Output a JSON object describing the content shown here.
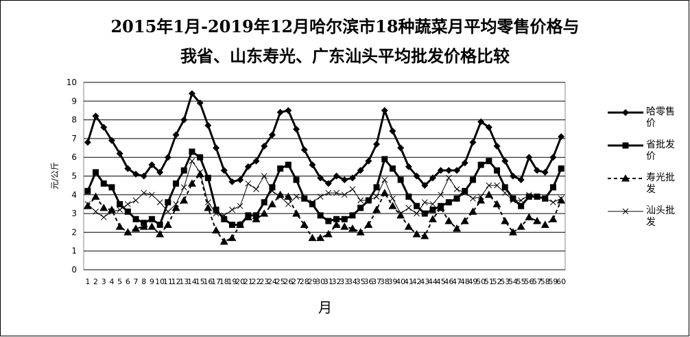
{
  "chart_data": {
    "type": "line",
    "title": [
      "2015年1月-2019年12月哈尔滨市18种蔬菜月平均零售价格与",
      "我省、山东寿光、广东汕头平均批发价格比较"
    ],
    "x_label": "月",
    "y_label": "元/公斤",
    "categories": [
      "1",
      "2",
      "3",
      "4",
      "5",
      "6",
      "7",
      "8",
      "9",
      "10",
      "11",
      "12",
      "13",
      "14",
      "15",
      "16",
      "17",
      "18",
      "19",
      "20",
      "21",
      "22",
      "23",
      "24",
      "25",
      "26",
      "27",
      "28",
      "29",
      "30",
      "31",
      "32",
      "33",
      "34",
      "35",
      "36",
      "37",
      "38",
      "39",
      "40",
      "41",
      "42",
      "43",
      "44",
      "45",
      "46",
      "47",
      "48",
      "49",
      "50",
      "51",
      "52",
      "53",
      "54",
      "55",
      "56",
      "57",
      "58",
      "59",
      "60"
    ],
    "ylim": [
      0,
      10
    ],
    "yticks": [
      0,
      1,
      2,
      3,
      4,
      5,
      6,
      7,
      8,
      9,
      10
    ],
    "grid": true,
    "series": [
      {
        "name": "哈零售价",
        "color": "#000000",
        "marker": "diamond",
        "dashed": false,
        "width": 3,
        "values": [
          6.8,
          8.2,
          7.6,
          6.9,
          6.2,
          5.4,
          5.1,
          5.0,
          5.6,
          5.2,
          6.0,
          7.2,
          8.0,
          9.4,
          8.9,
          7.7,
          6.5,
          5.3,
          4.7,
          4.8,
          5.5,
          5.8,
          6.6,
          7.2,
          8.4,
          8.5,
          7.5,
          6.4,
          5.6,
          4.9,
          4.6,
          5.0,
          4.8,
          4.9,
          5.3,
          5.8,
          6.7,
          8.5,
          7.4,
          6.5,
          5.5,
          5.0,
          4.5,
          4.9,
          5.3,
          5.3,
          5.3,
          5.7,
          6.8,
          7.9,
          7.6,
          6.6,
          5.8,
          5.0,
          4.8,
          6.0,
          5.3,
          5.2,
          6.0,
          7.1
        ]
      },
      {
        "name": "省批发价",
        "color": "#000000",
        "marker": "square",
        "dashed": false,
        "width": 3,
        "values": [
          4.2,
          5.2,
          4.6,
          4.4,
          3.5,
          3.1,
          2.7,
          2.5,
          2.7,
          2.4,
          3.6,
          4.6,
          5.3,
          6.3,
          6.0,
          4.9,
          3.2,
          2.7,
          2.4,
          2.4,
          2.9,
          2.9,
          3.6,
          4.4,
          5.4,
          5.6,
          4.8,
          3.8,
          3.5,
          2.9,
          2.6,
          2.7,
          2.7,
          2.9,
          3.3,
          3.7,
          4.4,
          5.9,
          5.4,
          4.8,
          3.9,
          3.4,
          3.0,
          3.2,
          3.4,
          3.6,
          3.8,
          4.2,
          4.8,
          5.6,
          5.8,
          5.3,
          4.4,
          3.8,
          3.4,
          3.9,
          3.9,
          3.8,
          4.4,
          5.4
        ]
      },
      {
        "name": "寿光批发",
        "color": "#000000",
        "marker": "triangle",
        "dashed": true,
        "width": 2,
        "values": [
          3.4,
          3.9,
          3.3,
          3.2,
          2.3,
          2.0,
          2.2,
          2.3,
          2.3,
          1.9,
          2.4,
          3.3,
          3.7,
          4.6,
          5.1,
          3.3,
          2.1,
          1.5,
          1.7,
          2.4,
          2.8,
          2.7,
          3.0,
          3.5,
          4.0,
          3.9,
          3.0,
          2.4,
          1.7,
          1.7,
          1.9,
          2.4,
          2.3,
          2.2,
          2.0,
          2.4,
          3.2,
          4.1,
          3.4,
          2.9,
          2.3,
          1.9,
          1.8,
          2.7,
          3.3,
          2.6,
          2.2,
          2.6,
          3.1,
          3.7,
          4.0,
          3.5,
          2.6,
          2.0,
          2.3,
          2.8,
          2.6,
          2.4,
          2.7,
          3.7
        ]
      },
      {
        "name": "汕头批发",
        "color": "#000000",
        "marker": "x",
        "dashed": false,
        "width": 1,
        "values": [
          3.5,
          3.1,
          2.8,
          3.1,
          3.2,
          3.5,
          3.7,
          4.1,
          4.0,
          3.6,
          3.1,
          3.5,
          4.4,
          5.8,
          5.2,
          3.6,
          3.0,
          2.9,
          3.2,
          3.4,
          4.6,
          4.3,
          5.0,
          4.2,
          3.9,
          3.5,
          3.9,
          3.8,
          3.6,
          3.9,
          4.1,
          4.1,
          4.0,
          4.3,
          3.7,
          3.7,
          3.9,
          4.8,
          3.8,
          3.0,
          3.3,
          3.0,
          3.6,
          3.5,
          4.0,
          4.9,
          4.3,
          4.1,
          3.8,
          3.9,
          4.5,
          4.5,
          4.1,
          3.7,
          3.7,
          4.0,
          3.9,
          3.8,
          3.6,
          3.8
        ]
      }
    ]
  }
}
